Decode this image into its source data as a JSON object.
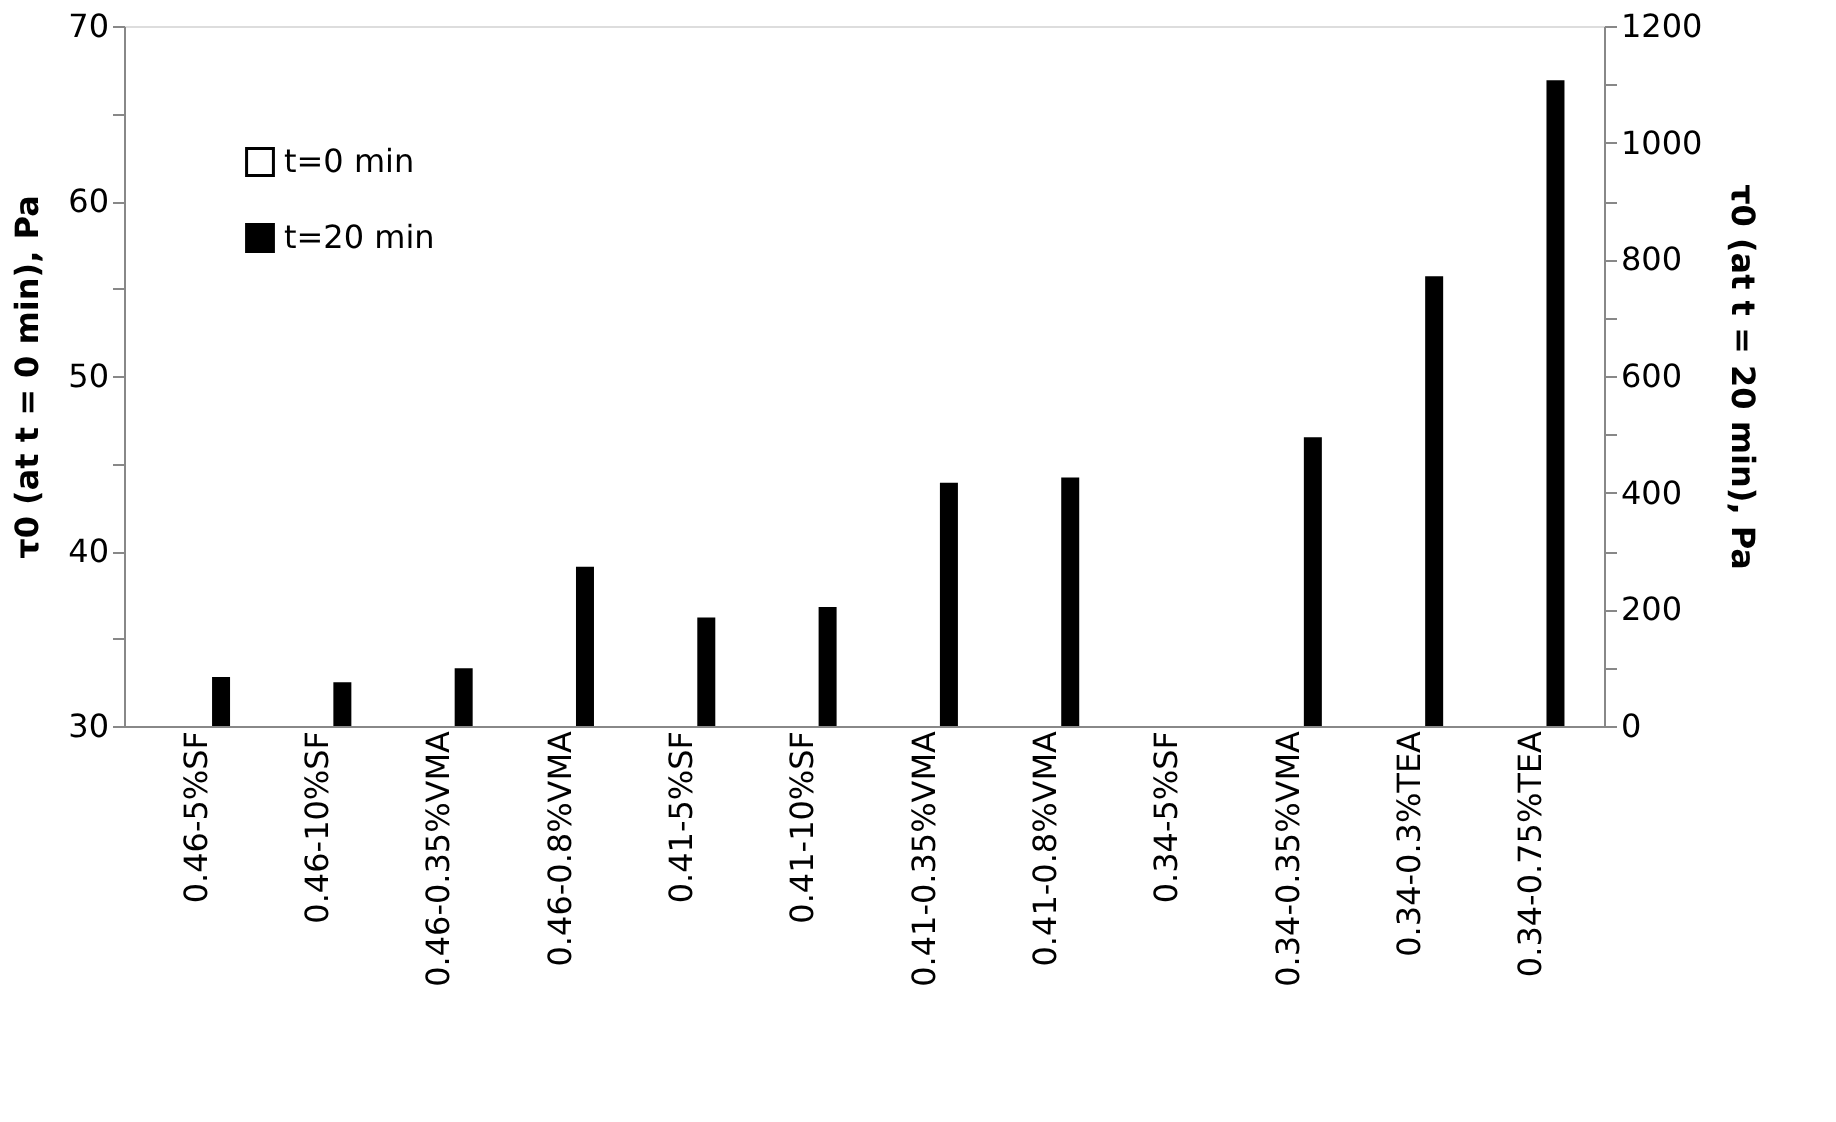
{
  "chart_data": {
    "type": "bar",
    "ylabel": "τ0 (at t = 0 min), Pa",
    "y2label": "τ0 (at t = 20 min), Pa",
    "categories": [
      "0.46-5%SF",
      "0.46-10%SF",
      "0.46-0.35%VMA",
      "0.46-0.8%VMA",
      "0.41-5%SF",
      "0.41-10%SF",
      "0.41-0.35%VMA",
      "0.41-0.8%VMA",
      "0.34-5%SF",
      "0.34-0.35%VMA",
      "0.34-0.3%TEA",
      "0.34-0.75%TEA"
    ],
    "series": [
      {
        "name": "t=0 min",
        "color": "#ffffff",
        "values": [
          null,
          null,
          null,
          null,
          null,
          null,
          null,
          null,
          null,
          null,
          null,
          null
        ]
      },
      {
        "name": "t=20 min",
        "color": "#000000",
        "axis": "y2",
        "values": [
          84,
          75,
          99,
          273,
          186,
          204,
          417,
          426,
          null,
          495,
          771,
          1107
        ]
      }
    ],
    "ylim": [
      30,
      70
    ],
    "yticks": [
      30,
      {
        "value": 35,
        "label": null
      },
      40,
      {
        "value": 45,
        "label": null
      },
      50,
      {
        "value": 55,
        "label": null
      },
      60,
      {
        "value": 65,
        "label": null
      },
      70
    ],
    "y2lim": [
      0,
      1200
    ],
    "y2ticks": [
      0,
      {
        "value": 100,
        "label": null
      },
      200,
      {
        "value": 300,
        "label": null
      },
      400,
      {
        "value": 500,
        "label": null
      },
      600,
      {
        "value": 700,
        "label": null
      },
      800,
      {
        "value": 900,
        "label": null
      },
      1000,
      {
        "value": 1100,
        "label": null
      },
      1200
    ],
    "grid": false,
    "legend": "top left"
  }
}
